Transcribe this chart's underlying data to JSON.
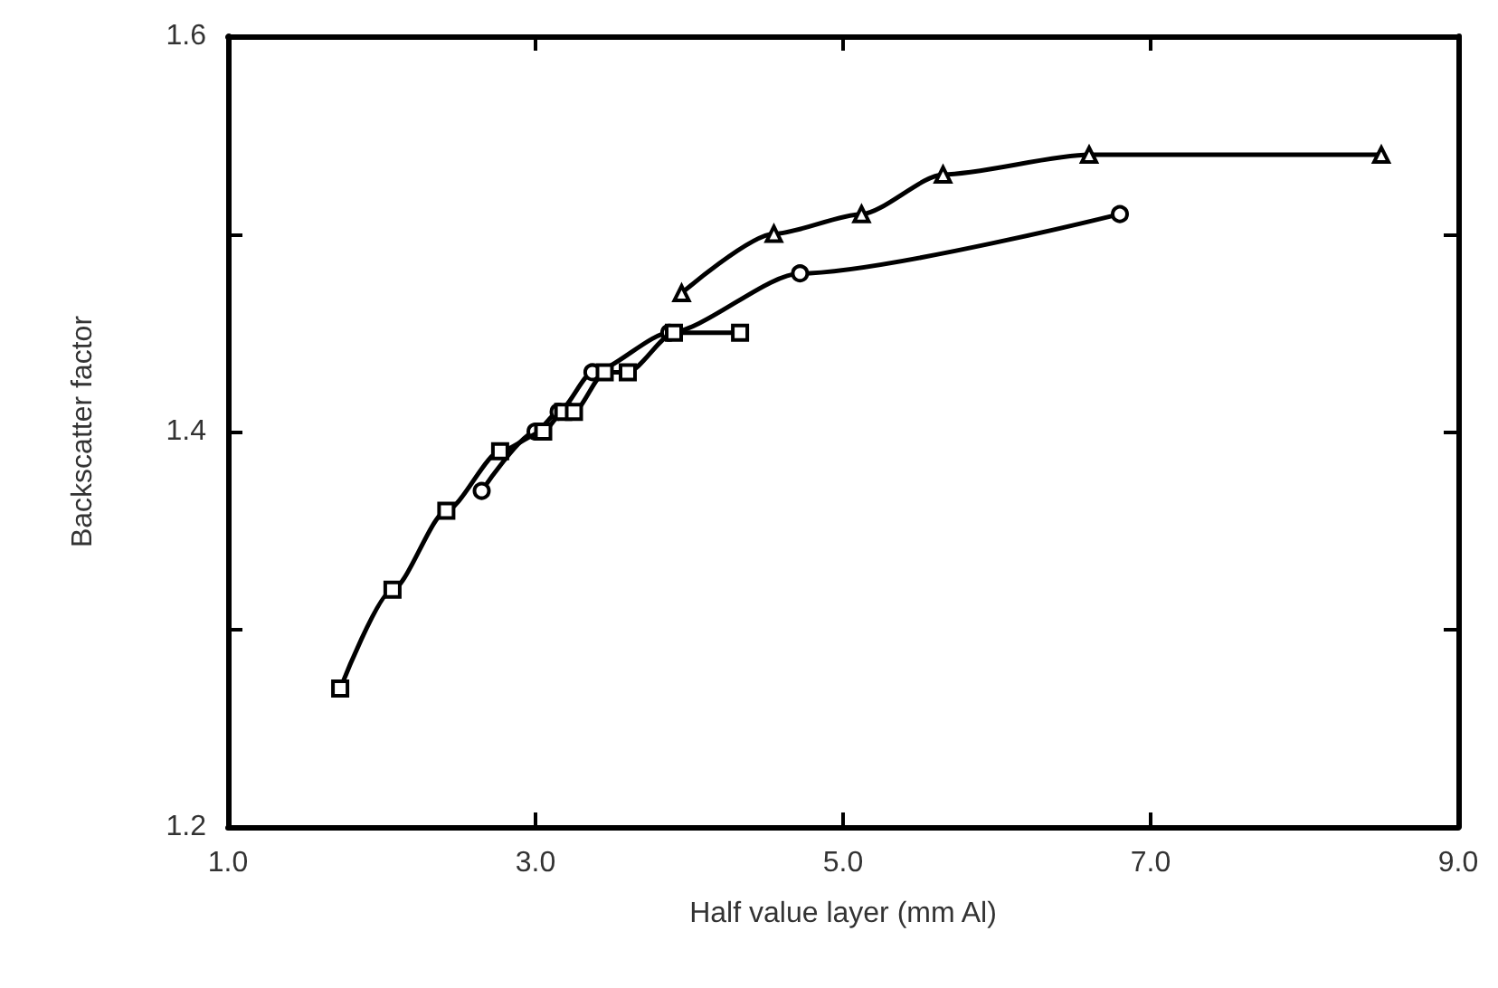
{
  "chart_data": {
    "type": "line",
    "xlabel": "Half value layer (mm Al)",
    "ylabel": "Backscatter factor",
    "xlim": [
      1.0,
      9.0
    ],
    "ylim": [
      1.2,
      1.6
    ],
    "xticks": [
      {
        "value": 1,
        "label": "1.0"
      },
      {
        "value": 3,
        "label": "3.0"
      },
      {
        "value": 5,
        "label": "5.0"
      },
      {
        "value": 7,
        "label": "7.0"
      },
      {
        "value": 9,
        "label": "9.0"
      }
    ],
    "yticks": [
      {
        "value": 1.2,
        "label": "1.2"
      },
      {
        "value": 1.3,
        "label": null
      },
      {
        "value": 1.4,
        "label": "1.4"
      },
      {
        "value": 1.5,
        "label": null
      },
      {
        "value": 1.6,
        "label": "1.6"
      }
    ],
    "grid": false,
    "line_style": "solid",
    "series": [
      {
        "color": "#000000",
        "marker": "square",
        "x": [
          1.73,
          2.07,
          2.42,
          2.77,
          3.05,
          3.18,
          3.25,
          3.45,
          3.6,
          3.9,
          4.33
        ],
        "values": [
          1.27,
          1.32,
          1.36,
          1.39,
          1.4,
          1.41,
          1.41,
          1.43,
          1.43,
          1.45,
          1.45
        ]
      },
      {
        "color": "#000000",
        "marker": "circle",
        "x": [
          2.65,
          3.0,
          3.15,
          3.37,
          3.87,
          4.72,
          6.8
        ],
        "values": [
          1.37,
          1.4,
          1.41,
          1.43,
          1.45,
          1.48,
          1.51
        ]
      },
      {
        "color": "#000000",
        "marker": "triangle",
        "x": [
          3.95,
          4.55,
          5.12,
          5.65,
          6.6,
          8.5
        ],
        "values": [
          1.47,
          1.5,
          1.51,
          1.53,
          1.54,
          1.54
        ]
      }
    ]
  }
}
